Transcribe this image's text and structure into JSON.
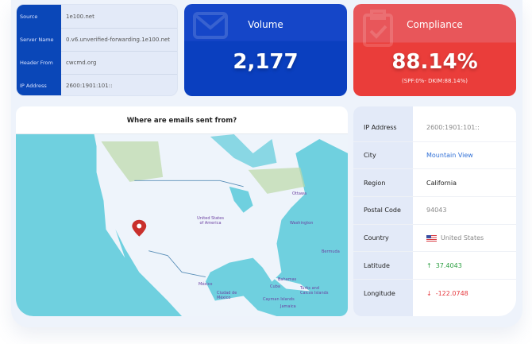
{
  "source": {
    "rows": [
      {
        "label": "Source",
        "value": "1e100.net"
      },
      {
        "label": "Server Name",
        "value": "0.v6.unverified-forwarding.1e100.net"
      },
      {
        "label": "Header From",
        "value": "cwcmd.org"
      },
      {
        "label": "IP Address",
        "value": "2600:1901:101::"
      }
    ]
  },
  "volume": {
    "title": "Volume",
    "value": "2,177",
    "icon": "mail-icon",
    "color": "#0a3fbf"
  },
  "compliance": {
    "title": "Compliance",
    "value": "88.14%",
    "detail": "(SPF:0%- DKIM:88.14%)",
    "icon": "clipboard-check-icon",
    "color": "#ea3d3a"
  },
  "map": {
    "title": "Where are emails sent from?",
    "labels": {
      "usa1": "United States",
      "usa2": "of America",
      "ottawa": "Ottawa",
      "washington": "Washington",
      "bermuda": "Bermuda",
      "mexico": "México",
      "cdmx1": "Ciudad de",
      "cdmx2": "México",
      "bahamas": "Bahamas",
      "cuba": "Cuba",
      "cayman": "Cayman Islands",
      "jamaica": "Jamaica",
      "turks1": "Turks and",
      "turks2": "Caicos Islands"
    },
    "marker": "map-pin-icon",
    "colors": {
      "water": "#6fd0df",
      "land": "#eef4fb"
    }
  },
  "info": {
    "rows": [
      {
        "label": "IP Address",
        "value": "2600:1901:101::",
        "color": "#888888"
      },
      {
        "label": "City",
        "value": "Mountain View",
        "color": "#2f6fd6"
      },
      {
        "label": "Region",
        "value": "California",
        "color": "#222222"
      },
      {
        "label": "Postal Code",
        "value": "94043",
        "color": "#888888"
      },
      {
        "label": "Country",
        "value": "United States",
        "color": "#888888"
      },
      {
        "label": "Latitude",
        "value": "37.4043",
        "arrow": "↑",
        "color": "#2ea043"
      },
      {
        "label": "Longitude",
        "value": "-122.0748",
        "arrow": "↓",
        "color": "#e5363b"
      }
    ]
  }
}
